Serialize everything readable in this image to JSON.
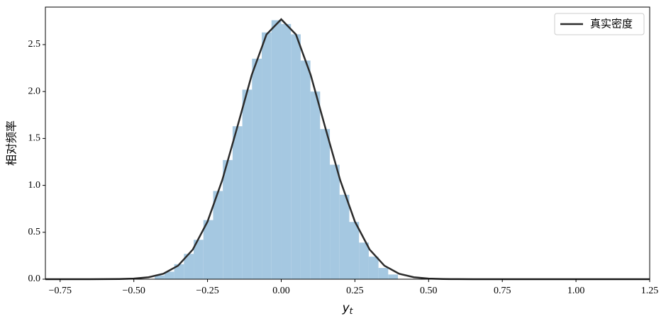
{
  "chart_data": {
    "type": "histogram",
    "xlabel": {
      "text": "y",
      "subscript": "t"
    },
    "ylabel": "相对频率",
    "bins": [
      -0.429,
      -0.396,
      -0.363,
      -0.33,
      -0.297,
      -0.264,
      -0.231,
      -0.198,
      -0.165,
      -0.132,
      -0.099,
      -0.066,
      -0.033,
      0,
      0.033,
      0.066,
      0.099,
      0.132,
      0.165,
      0.198,
      0.231,
      0.264,
      0.297,
      0.33,
      0.363,
      0.396
    ],
    "values": [
      0.04,
      0.08,
      0.16,
      0.27,
      0.42,
      0.63,
      0.94,
      1.27,
      1.63,
      2.02,
      2.35,
      2.63,
      2.76,
      2.72,
      2.61,
      2.33,
      2.0,
      1.6,
      1.22,
      0.9,
      0.61,
      0.39,
      0.24,
      0.12,
      0.05
    ],
    "color": "#a5c8e1",
    "density": {
      "name": "真实密度",
      "color": "#2b2b2b",
      "x": [
        -0.8,
        -0.75,
        -0.7,
        -0.65,
        -0.6,
        -0.55,
        -0.5,
        -0.45,
        -0.4,
        -0.35,
        -0.3,
        -0.25,
        -0.2,
        -0.15,
        -0.1,
        -0.05,
        0,
        0.05,
        0.1,
        0.15,
        0.2,
        0.25,
        0.3,
        0.35,
        0.4,
        0.45,
        0.5,
        0.55,
        0.6,
        0.65,
        0.7,
        0.75,
        0.8,
        0.85,
        0.9,
        0.95,
        1.0,
        1.05,
        1.1,
        1.15,
        1.2,
        1.25
      ],
      "values": [
        0,
        0,
        0,
        0,
        0.0005,
        0.0019,
        0.0067,
        0.021,
        0.058,
        0.144,
        0.316,
        0.614,
        1.056,
        1.61,
        2.177,
        2.608,
        2.77,
        2.608,
        2.177,
        1.61,
        1.056,
        0.614,
        0.316,
        0.144,
        0.058,
        0.021,
        0.0067,
        0.0019,
        0.0005,
        0.0001,
        0,
        0,
        0,
        0,
        0,
        0,
        0,
        0,
        0,
        0,
        0,
        0
      ]
    },
    "legend": "upper right",
    "xlim": [
      -0.8,
      1.25
    ],
    "ylim": [
      0,
      2.9
    ],
    "xticks": [
      {
        "value": -0.75,
        "label": "−0.75"
      },
      {
        "value": -0.5,
        "label": "−0.50"
      },
      {
        "value": -0.25,
        "label": "−0.25"
      },
      {
        "value": 0,
        "label": "0.00"
      },
      0.25,
      {
        "value": 0.5,
        "label": "0.50"
      },
      0.75,
      {
        "value": 1,
        "label": "1.00"
      },
      1.25
    ],
    "yticks": [
      {
        "value": 0,
        "label": "0.0"
      },
      0.5,
      {
        "value": 1,
        "label": "1.0"
      },
      1.5,
      {
        "value": 2,
        "label": "2.0"
      },
      2.5
    ]
  }
}
